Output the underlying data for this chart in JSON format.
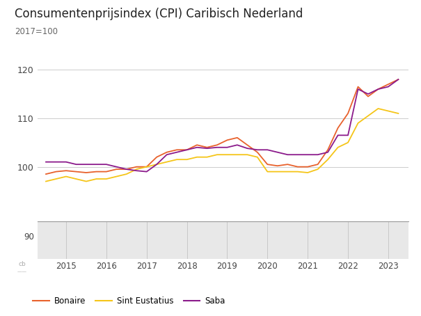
{
  "title": "Consumentenprijsindex (CPI) Caribisch Nederland",
  "subtitle": "2017=100",
  "bonaire_color": "#E8612C",
  "sint_eustatius_color": "#F5C518",
  "saba_color": "#8B1A8B",
  "legend_labels": [
    "Bonaire",
    "Sint Eustatius",
    "Saba"
  ],
  "xtick_years": [
    2015,
    2016,
    2017,
    2018,
    2019,
    2020,
    2021,
    2022,
    2023
  ],
  "background_color": "#ffffff",
  "nav_background": "#e8e8e8",
  "grid_color": "#cccccc",
  "x_q": [
    2014.5,
    2014.75,
    2015.0,
    2015.25,
    2015.5,
    2015.75,
    2016.0,
    2016.25,
    2016.5,
    2016.75,
    2017.0,
    2017.25,
    2017.5,
    2017.75,
    2018.0,
    2018.25,
    2018.5,
    2018.75,
    2019.0,
    2019.25,
    2019.5,
    2019.75,
    2020.0,
    2020.25,
    2020.5,
    2020.75,
    2021.0,
    2021.25,
    2021.5,
    2021.75,
    2022.0,
    2022.25,
    2022.5,
    2022.75,
    2023.0,
    2023.25
  ],
  "bonaire": [
    98.5,
    99.0,
    99.2,
    99.0,
    98.8,
    99.0,
    99.0,
    99.5,
    99.5,
    100.0,
    100.0,
    102.0,
    103.0,
    103.5,
    103.5,
    104.5,
    104.0,
    104.5,
    105.5,
    106.0,
    104.5,
    103.0,
    100.5,
    100.2,
    100.5,
    100.0,
    100.0,
    100.5,
    103.5,
    108.0,
    111.0,
    116.5,
    114.5,
    116.0,
    117.0,
    118.0
  ],
  "sint_eustatius": [
    97.0,
    97.5,
    98.0,
    97.5,
    97.0,
    97.5,
    97.5,
    98.0,
    98.5,
    99.5,
    100.0,
    100.5,
    101.0,
    101.5,
    101.5,
    102.0,
    102.0,
    102.5,
    102.5,
    102.5,
    102.5,
    102.0,
    99.0,
    99.0,
    99.0,
    99.0,
    98.8,
    99.5,
    101.5,
    104.0,
    105.0,
    109.0,
    110.5,
    112.0,
    111.5,
    111.0
  ],
  "saba": [
    101.0,
    101.0,
    101.0,
    100.5,
    100.5,
    100.5,
    100.5,
    100.0,
    99.5,
    99.2,
    99.0,
    100.5,
    102.5,
    103.0,
    103.5,
    104.0,
    103.8,
    104.0,
    104.0,
    104.5,
    103.8,
    103.5,
    103.5,
    103.0,
    102.5,
    102.5,
    102.5,
    102.5,
    103.0,
    106.5,
    106.5,
    116.0,
    115.0,
    116.0,
    116.5,
    118.0
  ]
}
